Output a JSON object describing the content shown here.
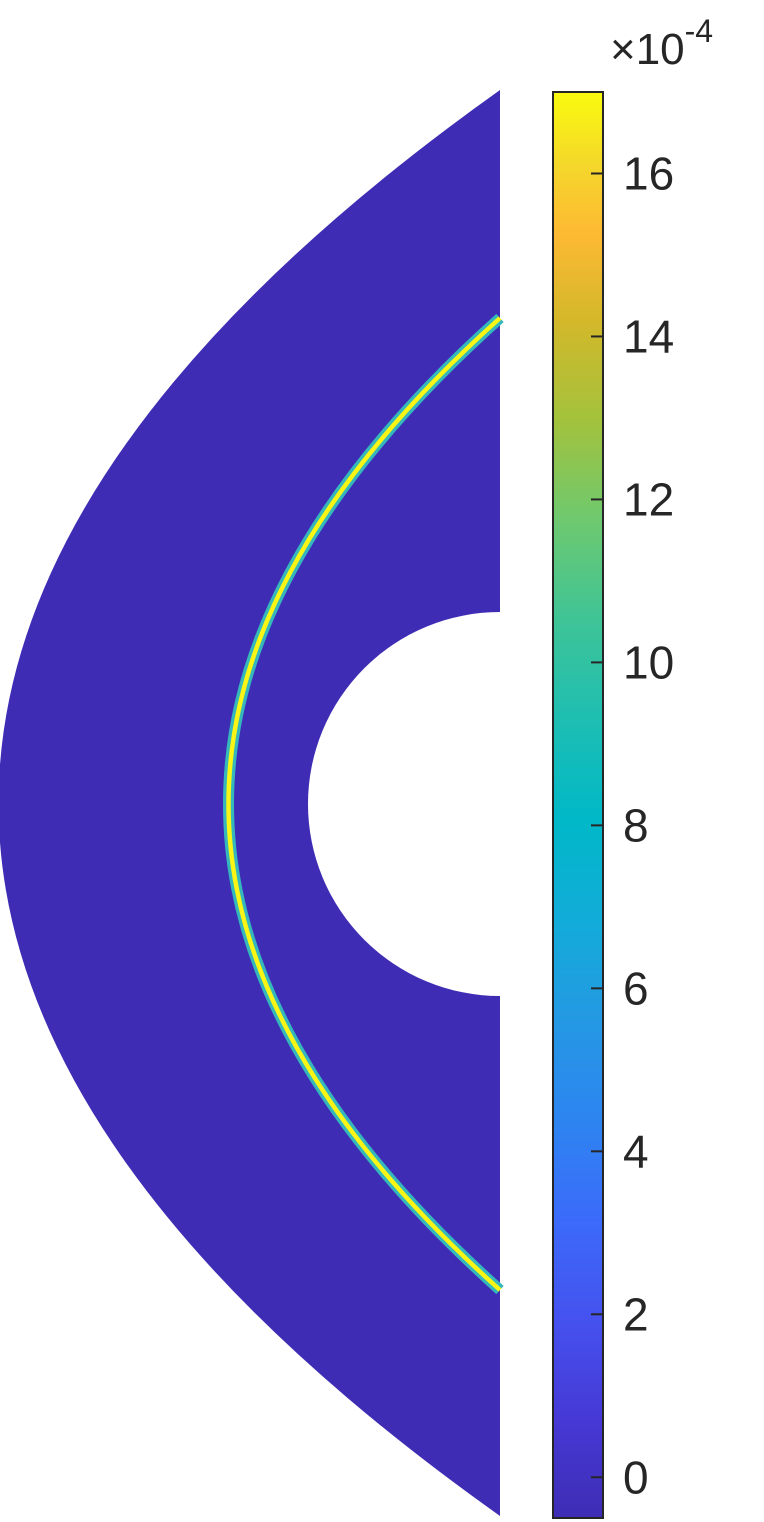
{
  "chart_data": {
    "type": "heatmap",
    "title": "",
    "xlabel": "",
    "ylabel": "",
    "colormap": "parula",
    "background_color": "#3e2db4",
    "colorbar": {
      "position": "right",
      "range": [
        -0.5,
        17
      ],
      "ticks": [
        "0",
        "2",
        "4",
        "6",
        "8",
        "10",
        "12",
        "14",
        "16"
      ],
      "tick_values": [
        0,
        2,
        4,
        6,
        8,
        10,
        12,
        14,
        16
      ],
      "multiplier": {
        "base": "×10",
        "exponent": "-4"
      }
    },
    "field": {
      "background_value": 0,
      "wavefront_peak_value": 17,
      "colors": {
        "background": "#3e2db4",
        "front_outer": "#34b8bc",
        "front_inner": "#f9f514"
      }
    }
  }
}
